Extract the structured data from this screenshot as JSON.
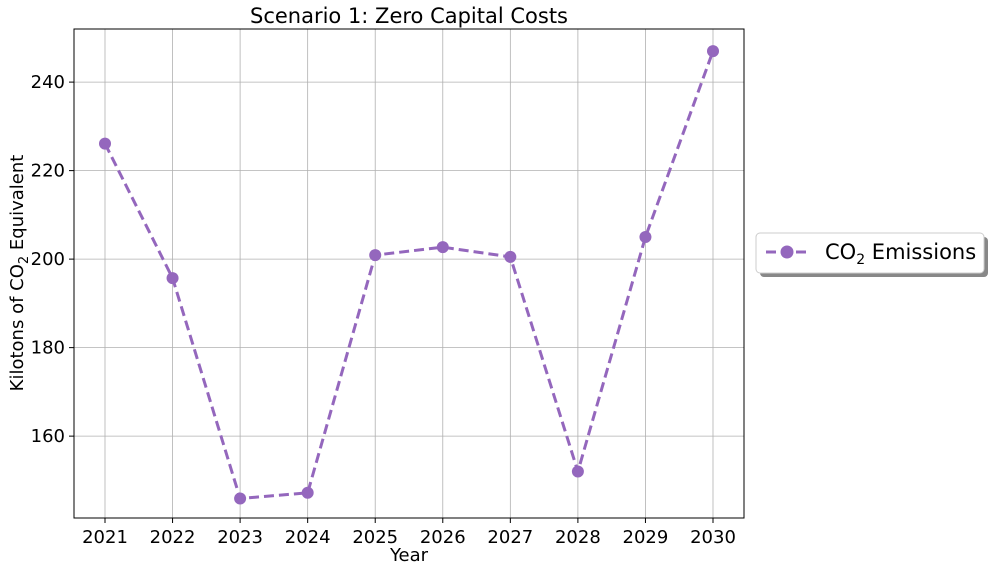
{
  "chart_data": {
    "type": "line",
    "title": "Scenario 1: Zero Capital Costs",
    "xlabel": "Year",
    "ylabel_main": "Kilotons of CO",
    "ylabel_sub": "2",
    "ylabel_tail": " Equivalent",
    "x": [
      2021,
      2022,
      2023,
      2024,
      2025,
      2026,
      2027,
      2028,
      2029,
      2030
    ],
    "xticks": [
      "2021",
      "2022",
      "2023",
      "2024",
      "2025",
      "2026",
      "2027",
      "2028",
      "2029",
      "2030"
    ],
    "yticks": [
      160,
      180,
      200,
      220,
      240
    ],
    "ylim": [
      141.5,
      252
    ],
    "grid": true,
    "legend_placement": "right",
    "series": [
      {
        "name_main": "CO",
        "name_sub": "2",
        "name_tail": " Emissions",
        "color": "#9467bd",
        "values": [
          226.1,
          195.7,
          145.9,
          147.2,
          200.9,
          202.7,
          200.5,
          152.0,
          205.0,
          247.0
        ]
      }
    ]
  }
}
